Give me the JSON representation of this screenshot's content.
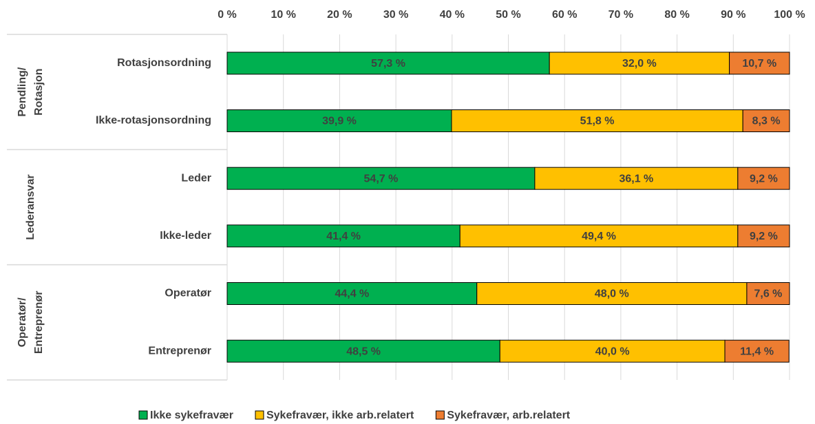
{
  "chart_data": {
    "type": "stacked_bar_horizontal",
    "groups": [
      {
        "label": [
          "Pendling/",
          "Rotasjon"
        ]
      },
      {
        "label": [
          "Lederansvar"
        ]
      },
      {
        "label": [
          "Operatør/",
          "Entreprenør"
        ]
      }
    ],
    "categories": [
      "Rotasjonsordning",
      "Ikke-rotasjonsordning",
      "Leder",
      "Ikke-leder",
      "Operatør",
      "Entreprenør"
    ],
    "series": [
      {
        "name": "Ikke sykefravær",
        "color": "#00b050",
        "values": [
          57.3,
          39.9,
          54.7,
          41.4,
          44.4,
          48.5
        ],
        "value_labels": [
          "57,3 %",
          "39,9 %",
          "54,7 %",
          "41,4 %",
          "44,4 %",
          "48,5 %"
        ]
      },
      {
        "name": "Sykefravær, ikke arb.relatert",
        "color": "#ffc000",
        "values": [
          32.0,
          51.8,
          36.1,
          49.4,
          48.0,
          40.0
        ],
        "value_labels": [
          "32,0 %",
          "51,8 %",
          "36,1 %",
          "49,4 %",
          "48,0 %",
          "40,0 %"
        ]
      },
      {
        "name": "Sykefravær, arb.relatert",
        "color": "#ed7d31",
        "values": [
          10.7,
          8.3,
          9.2,
          9.2,
          7.6,
          11.4
        ],
        "value_labels": [
          "10,7 %",
          "8,3 %",
          "9,2 %",
          "9,2 %",
          "7,6 %",
          "11,4 %"
        ]
      }
    ],
    "xlim": [
      0,
      100
    ],
    "xticks": [
      {
        "value": 0,
        "label": "0 %"
      },
      {
        "value": 10,
        "label": "10 %"
      },
      {
        "value": 20,
        "label": "20 %"
      },
      {
        "value": 30,
        "label": "30 %"
      },
      {
        "value": 40,
        "label": "40 %"
      },
      {
        "value": 50,
        "label": "50 %"
      },
      {
        "value": 60,
        "label": "60 %"
      },
      {
        "value": 70,
        "label": "70 %"
      },
      {
        "value": 80,
        "label": "80 %"
      },
      {
        "value": 90,
        "label": "90 %"
      },
      {
        "value": 100,
        "label": "100 %"
      }
    ],
    "grid": true,
    "legend": "bottom"
  }
}
